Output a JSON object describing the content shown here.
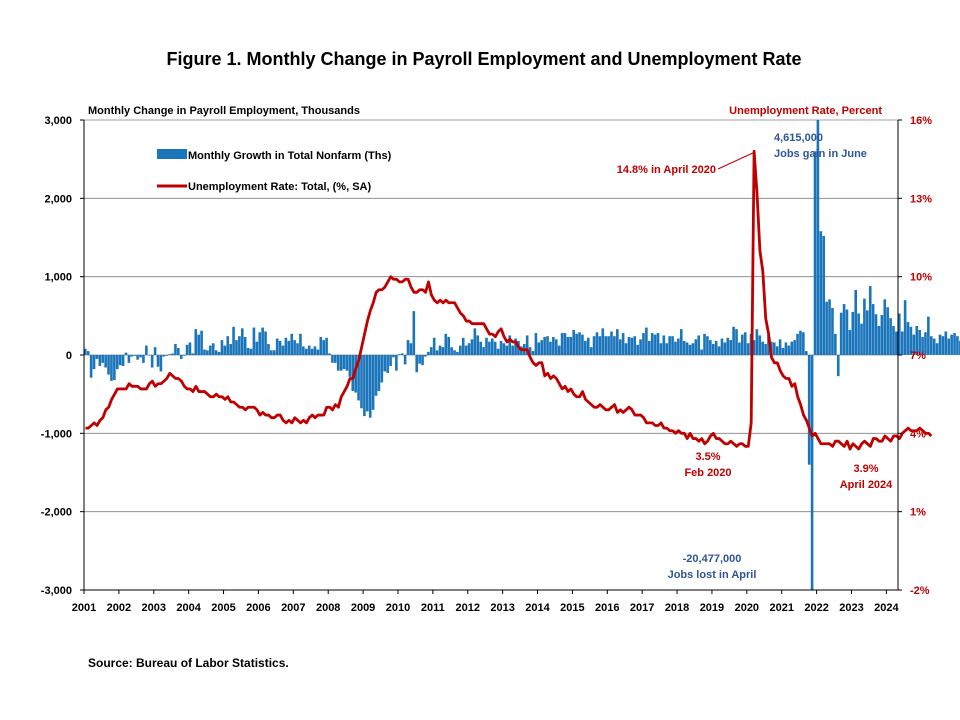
{
  "colors": {
    "bar": "#1b75bb",
    "line": "#c00000",
    "grid": "#808080",
    "axis": "#000000",
    "annotation_blue": "#2f5597",
    "annotation_red": "#c00000"
  },
  "chart_data": {
    "type": "bar+line",
    "title": "Figure 1. Monthly Change in Payroll Employment and Unemployment Rate",
    "left_axis_label": "Monthly Change in Payroll Employment, Thousands",
    "right_axis_label": "Unemployment Rate, Percent",
    "left_ylim": [
      -3000,
      3000
    ],
    "right_ylim": [
      -2,
      16
    ],
    "left_ticks": [
      "3,000",
      "2,000",
      "1,000",
      "0",
      "-1,000",
      "-2,000",
      "-3,000"
    ],
    "left_tick_values": [
      3000,
      2000,
      1000,
      0,
      -1000,
      -2000,
      -3000
    ],
    "right_ticks": [
      "16%",
      "13%",
      "10%",
      "7%",
      "4%",
      "1%",
      "-2%"
    ],
    "right_tick_values": [
      16,
      13,
      10,
      7,
      4,
      1,
      -2
    ],
    "x_ticks": [
      "2001",
      "2002",
      "2003",
      "2004",
      "2005",
      "2006",
      "2007",
      "2008",
      "2009",
      "2010",
      "2011",
      "2012",
      "2013",
      "2014",
      "2015",
      "2016",
      "2017",
      "2018",
      "2019",
      "2020",
      "2021",
      "2022",
      "2023",
      "2024"
    ],
    "grid": "horizontal",
    "legend_position": "top-left",
    "series": [
      {
        "name": "Monthly Growth in Total Nonfarm (Ths)",
        "kind": "bar",
        "axis": "left",
        "start": "2001-01",
        "values": [
          80,
          50,
          -290,
          -180,
          -50,
          -140,
          -100,
          -160,
          -250,
          -330,
          -320,
          -180,
          -130,
          -140,
          30,
          -100,
          -20,
          -10,
          -60,
          -30,
          -100,
          120,
          0,
          -160,
          100,
          -150,
          -210,
          -20,
          -10,
          10,
          20,
          140,
          90,
          -50,
          -10,
          130,
          160,
          20,
          330,
          260,
          310,
          70,
          60,
          120,
          150,
          60,
          40,
          190,
          120,
          240,
          140,
          360,
          190,
          240,
          340,
          230,
          90,
          80,
          350,
          170,
          290,
          350,
          300,
          140,
          60,
          60,
          210,
          180,
          120,
          220,
          180,
          270,
          190,
          150,
          270,
          110,
          80,
          120,
          80,
          110,
          70,
          230,
          190,
          220,
          20,
          -100,
          -100,
          -200,
          -200,
          -180,
          -200,
          -280,
          -460,
          -480,
          -580,
          -680,
          -780,
          -720,
          -800,
          -700,
          -520,
          -460,
          -350,
          -210,
          -230,
          -140,
          -30,
          -200,
          10,
          20,
          -120,
          190,
          150,
          560,
          -220,
          -110,
          -130,
          -20,
          40,
          100,
          220,
          60,
          120,
          100,
          270,
          230,
          100,
          60,
          40,
          120,
          220,
          120,
          150,
          200,
          340,
          250,
          170,
          100,
          220,
          170,
          210,
          170,
          80,
          180,
          150,
          120,
          250,
          120,
          210,
          180,
          110,
          140,
          250,
          100,
          50,
          280,
          160,
          190,
          230,
          240,
          170,
          230,
          200,
          120,
          280,
          280,
          230,
          230,
          320,
          270,
          290,
          260,
          180,
          220,
          100,
          240,
          290,
          240,
          340,
          240,
          240,
          300,
          240,
          330,
          200,
          280,
          150,
          230,
          220,
          240,
          130,
          200,
          280,
          350,
          180,
          280,
          260,
          280,
          150,
          250,
          150,
          240,
          240,
          170,
          210,
          330,
          180,
          160,
          130,
          150,
          200,
          250,
          70,
          270,
          240,
          190,
          140,
          180,
          110,
          210,
          160,
          220,
          190,
          360,
          330,
          160,
          260,
          290,
          150,
          270,
          190,
          330,
          250,
          170,
          140,
          260,
          170,
          160,
          110,
          200,
          90,
          160,
          120,
          170,
          190,
          270,
          310,
          290,
          50,
          -1400,
          -20477,
          2600,
          4615,
          1580,
          1520,
          680,
          710,
          600,
          270,
          -270,
          540,
          650,
          580,
          320,
          550,
          830,
          530,
          400,
          720,
          570,
          880,
          650,
          520,
          370,
          510,
          710,
          610,
          470,
          370,
          300,
          530,
          300,
          700,
          420,
          360,
          260,
          370,
          320,
          230,
          290,
          490,
          240,
          210,
          150,
          260,
          240,
          300,
          210,
          260,
          280,
          240,
          180,
          300,
          170,
          270,
          320,
          190
        ]
      },
      {
        "name": "Unemployment Rate: Total, (%, SA)",
        "kind": "line",
        "axis": "right",
        "start": "2001-01",
        "values": [
          4.2,
          4.2,
          4.3,
          4.4,
          4.3,
          4.5,
          4.6,
          4.9,
          5.0,
          5.3,
          5.5,
          5.7,
          5.7,
          5.7,
          5.7,
          5.9,
          5.8,
          5.8,
          5.8,
          5.7,
          5.7,
          5.7,
          5.9,
          6.0,
          5.8,
          5.9,
          5.9,
          6.0,
          6.1,
          6.3,
          6.2,
          6.1,
          6.1,
          6.0,
          5.8,
          5.7,
          5.7,
          5.6,
          5.8,
          5.6,
          5.6,
          5.6,
          5.5,
          5.4,
          5.4,
          5.5,
          5.4,
          5.4,
          5.3,
          5.4,
          5.2,
          5.2,
          5.1,
          5.0,
          5.0,
          4.9,
          5.0,
          5.0,
          5.0,
          4.9,
          4.7,
          4.8,
          4.7,
          4.7,
          4.6,
          4.6,
          4.7,
          4.7,
          4.5,
          4.4,
          4.5,
          4.4,
          4.6,
          4.5,
          4.4,
          4.5,
          4.4,
          4.6,
          4.7,
          4.6,
          4.7,
          4.7,
          4.7,
          5.0,
          5.0,
          4.9,
          5.1,
          5.0,
          5.4,
          5.6,
          5.8,
          6.1,
          6.1,
          6.5,
          6.8,
          7.3,
          7.8,
          8.3,
          8.7,
          9.0,
          9.4,
          9.5,
          9.5,
          9.6,
          9.8,
          10.0,
          9.9,
          9.9,
          9.8,
          9.8,
          9.9,
          9.9,
          9.6,
          9.4,
          9.4,
          9.5,
          9.5,
          9.4,
          9.8,
          9.3,
          9.1,
          9.0,
          9.1,
          9.0,
          9.1,
          9.0,
          9.0,
          9.0,
          8.8,
          8.6,
          8.5,
          8.3,
          8.3,
          8.2,
          8.2,
          8.2,
          8.2,
          8.2,
          8.0,
          7.8,
          7.8,
          7.7,
          7.9,
          8.0,
          7.7,
          7.5,
          7.6,
          7.5,
          7.5,
          7.3,
          7.2,
          7.2,
          7.2,
          6.9,
          6.7,
          6.6,
          6.7,
          6.7,
          6.2,
          6.3,
          6.1,
          6.2,
          6.1,
          5.9,
          5.7,
          5.8,
          5.6,
          5.7,
          5.5,
          5.4,
          5.4,
          5.6,
          5.3,
          5.2,
          5.1,
          5.0,
          5.0,
          5.1,
          5.0,
          4.9,
          4.9,
          5.0,
          5.1,
          4.8,
          4.9,
          4.8,
          4.9,
          5.0,
          4.9,
          4.7,
          4.7,
          4.7,
          4.6,
          4.4,
          4.4,
          4.4,
          4.3,
          4.3,
          4.4,
          4.2,
          4.2,
          4.1,
          4.1,
          4.0,
          4.1,
          4.0,
          4.0,
          3.8,
          4.0,
          3.8,
          3.8,
          3.7,
          3.8,
          3.6,
          3.7,
          3.9,
          4.0,
          3.8,
          3.8,
          3.7,
          3.6,
          3.6,
          3.7,
          3.6,
          3.5,
          3.6,
          3.6,
          3.5,
          3.5,
          4.4,
          14.8,
          13.2,
          11.0,
          10.2,
          8.4,
          7.8,
          6.9,
          6.7,
          6.7,
          6.4,
          6.2,
          6.1,
          6.1,
          5.8,
          5.9,
          5.4,
          5.1,
          4.7,
          4.5,
          4.2,
          3.9,
          4.0,
          3.8,
          3.6,
          3.6,
          3.6,
          3.6,
          3.5,
          3.7,
          3.7,
          3.6,
          3.5,
          3.7,
          3.4,
          3.6,
          3.5,
          3.4,
          3.6,
          3.7,
          3.6,
          3.5,
          3.8,
          3.8,
          3.7,
          3.7,
          3.9,
          3.8,
          3.7,
          3.9,
          3.9,
          3.8,
          4.0,
          4.1,
          4.2,
          4.1,
          4.1,
          4.1,
          4.2,
          4.1,
          4.0,
          4.0,
          3.9
        ]
      }
    ],
    "annotations": [
      {
        "lines": [
          "4,615,000",
          "Jobs gain in June"
        ],
        "color": "blue"
      },
      {
        "lines": [
          "14.8% in April 2020"
        ],
        "color": "red"
      },
      {
        "lines": [
          "3.5%",
          "Feb 2020"
        ],
        "color": "red"
      },
      {
        "lines": [
          "-20,477,000",
          "Jobs lost in April"
        ],
        "color": "blue"
      },
      {
        "lines": [
          "3.9%",
          "April 2024"
        ],
        "color": "red"
      }
    ]
  },
  "footer": {
    "source": "Source: Bureau of Labor Statistics."
  }
}
